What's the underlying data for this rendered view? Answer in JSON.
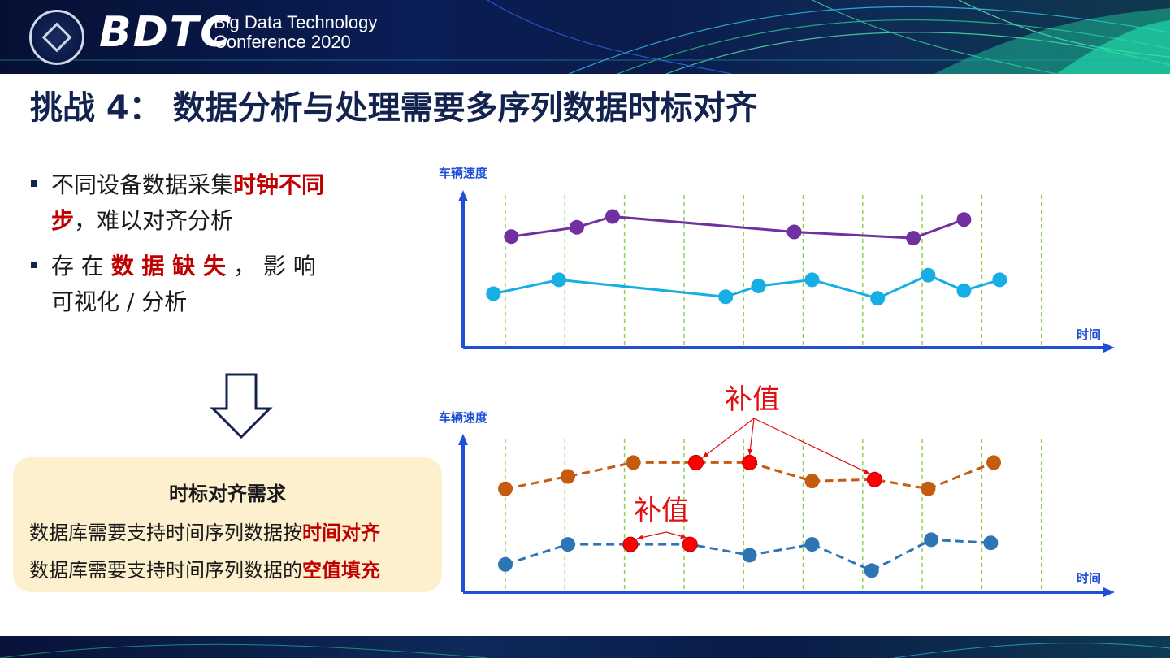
{
  "banner": {
    "brand": "BDTC",
    "subtitle_line1": "Big Data Technology",
    "subtitle_line2": "Conference 2020"
  },
  "title": "挑战 4： 数据分析与处理需要多序列数据时标对齐",
  "bullets": [
    {
      "pre": "不同设备数据采集",
      "em": "时钟不同步",
      "post": "，难以对齐分析"
    },
    {
      "pre": "存 在 ",
      "em": "数 据 缺 失",
      "post": " ， 影 响 可视化 / 分析"
    }
  ],
  "requirements": {
    "title": "时标对齐需求",
    "lines": [
      {
        "pre": "数据库需要支持时间序列数据按",
        "em": "时间对齐"
      },
      {
        "pre": "数据库需要支持时间序列数据的",
        "em": "空值填充"
      }
    ]
  },
  "colors": {
    "navy": "#13234f",
    "emphasis": "#c00000",
    "axis": "#1f4fd8",
    "purple": "#7030a0",
    "cyan": "#17aee6",
    "orange": "#c55a11",
    "blue": "#2e75b6",
    "fill_point": "#ff0000"
  },
  "chart_data": [
    {
      "type": "line",
      "ylabel": "车辆速度",
      "xlabel": "时间",
      "series": [
        {
          "color": "purple",
          "dashed": false,
          "points": [
            [
              0.6,
              0.72
            ],
            [
              1.7,
              0.78
            ],
            [
              2.3,
              0.85
            ],
            [
              5.35,
              0.75
            ],
            [
              7.35,
              0.71
            ],
            [
              8.2,
              0.83
            ]
          ]
        },
        {
          "color": "cyan",
          "dashed": false,
          "points": [
            [
              0.3,
              0.35
            ],
            [
              1.4,
              0.44
            ],
            [
              4.2,
              0.33
            ],
            [
              4.75,
              0.4
            ],
            [
              5.65,
              0.44
            ],
            [
              6.75,
              0.32
            ],
            [
              7.6,
              0.47
            ],
            [
              8.2,
              0.37
            ],
            [
              8.8,
              0.44
            ]
          ]
        }
      ]
    },
    {
      "type": "line",
      "ylabel": "车辆速度",
      "xlabel": "时间",
      "annotations": [
        "补值",
        "补值"
      ],
      "series": [
        {
          "color": "orange",
          "dashed": true,
          "points": [
            [
              0.5,
              0.67
            ],
            [
              1.55,
              0.75
            ],
            [
              2.65,
              0.84
            ],
            [
              3.7,
              0.84
            ],
            [
              4.6,
              0.84
            ],
            [
              5.65,
              0.72
            ],
            [
              6.7,
              0.73
            ],
            [
              7.6,
              0.67
            ],
            [
              8.7,
              0.84
            ]
          ],
          "filled_indices": [
            3,
            4,
            6
          ]
        },
        {
          "color": "blue",
          "dashed": true,
          "points": [
            [
              0.5,
              0.18
            ],
            [
              1.55,
              0.31
            ],
            [
              2.6,
              0.31
            ],
            [
              3.6,
              0.31
            ],
            [
              4.6,
              0.24
            ],
            [
              5.65,
              0.31
            ],
            [
              6.65,
              0.14
            ],
            [
              7.65,
              0.34
            ],
            [
              8.65,
              0.32
            ]
          ],
          "filled_indices": [
            2,
            3
          ]
        }
      ]
    }
  ]
}
